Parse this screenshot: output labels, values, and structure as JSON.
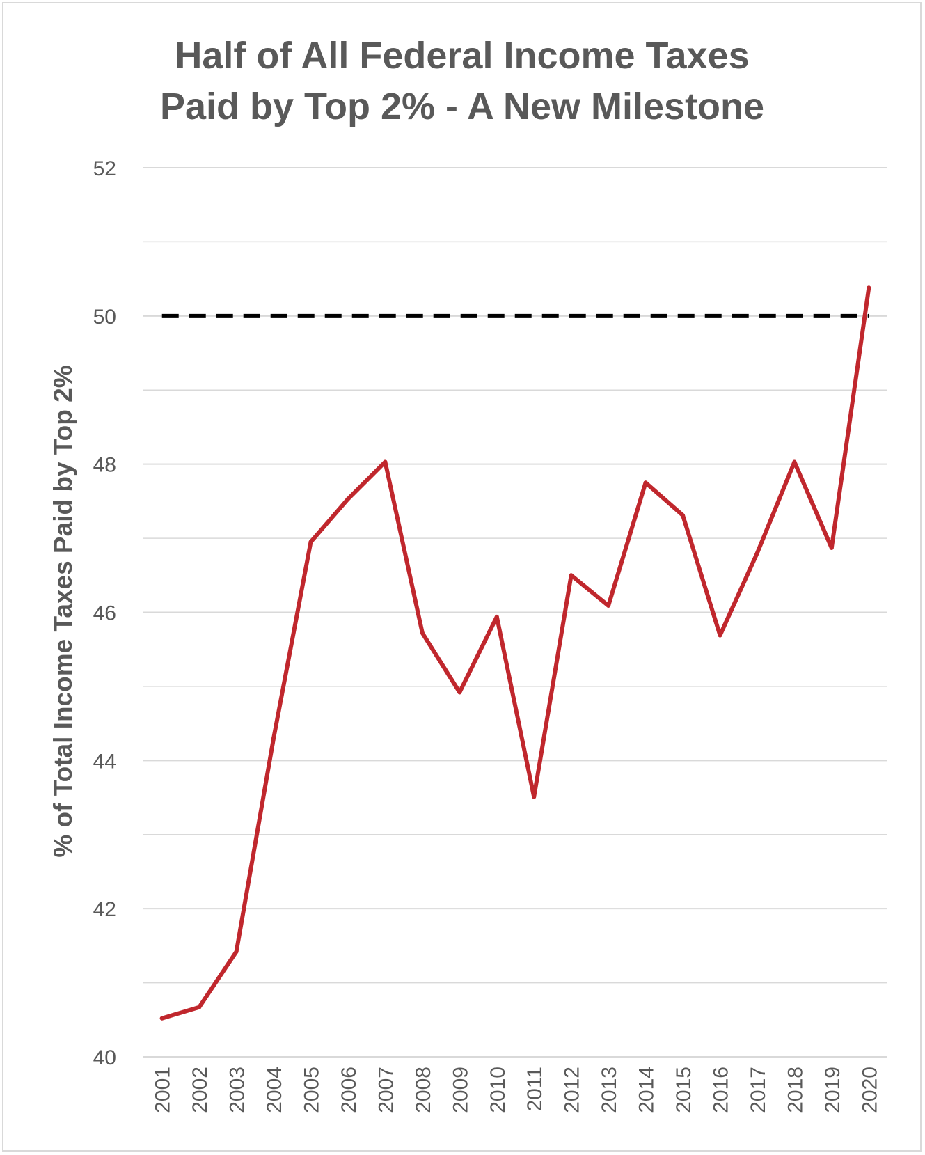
{
  "chart_data": {
    "type": "line",
    "title": [
      "Half of All Federal Income Taxes",
      "Paid by Top 2% - A New Milestone"
    ],
    "xlabel": "",
    "ylabel": "% of Total Income Taxes Paid by Top 2%",
    "ylim": [
      40,
      52
    ],
    "yticks": [
      40,
      42,
      44,
      46,
      48,
      50,
      52
    ],
    "grid": true,
    "x": [
      "2001",
      "2002",
      "2003",
      "2004",
      "2005",
      "2006",
      "2007",
      "2008",
      "2009",
      "2010",
      "2011",
      "2012",
      "2013",
      "2014",
      "2015",
      "2016",
      "2017",
      "2018",
      "2019",
      "2020"
    ],
    "series": [
      {
        "color": "#c0272d",
        "values": [
          40.52,
          40.67,
          41.42,
          44.3,
          46.95,
          47.53,
          48.03,
          45.72,
          44.92,
          45.94,
          43.51,
          46.5,
          46.09,
          47.75,
          47.31,
          45.69,
          46.8,
          48.03,
          46.87,
          50.38
        ]
      }
    ],
    "reference_line": {
      "value": 50,
      "style": "dashed",
      "color": "#000000"
    },
    "colors": {
      "gridline": "#d9d9d9",
      "text": "#595959"
    }
  }
}
